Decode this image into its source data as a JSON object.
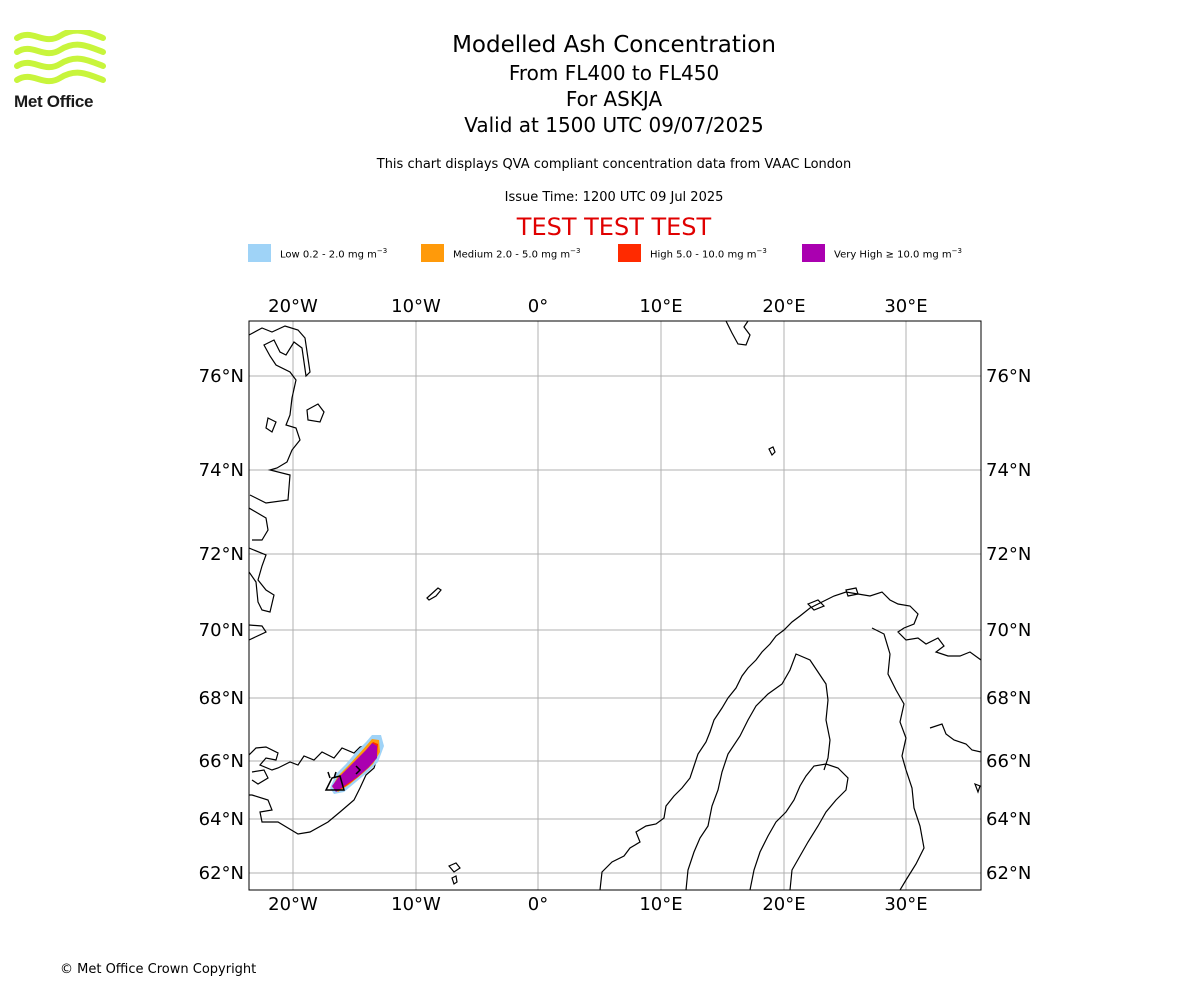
{
  "logo": {
    "text": "Met Office",
    "color": "#c8f53c"
  },
  "header": {
    "title": "Modelled Ash Concentration",
    "levels": "From FL400 to FL450",
    "volcano": "For ASKJA",
    "valid": "Valid at 1500 UTC 09/07/2025",
    "description": "This chart displays QVA compliant concentration data from VAAC London",
    "issue_time": "Issue Time: 1200 UTC 09 Jul 2025",
    "test_banner": "TEST TEST TEST",
    "test_color": "#e00000"
  },
  "legend": [
    {
      "label": "Low 0.2 - 2.0 mg m",
      "unit_exp": "−3",
      "color": "#9fd3f7"
    },
    {
      "label": "Medium 2.0 - 5.0 mg m",
      "unit_exp": "−3",
      "color": "#ff9a0a"
    },
    {
      "label": "High 5.0 - 10.0 mg m",
      "unit_exp": "−3",
      "color": "#ff2a00"
    },
    {
      "label": "Very High  ≥  10.0 mg m",
      "unit_exp": "−3",
      "color": "#aa00b0"
    }
  ],
  "map": {
    "lon_labels": [
      "20°W",
      "10°W",
      "0°",
      "10°E",
      "20°E",
      "30°E"
    ],
    "lat_labels": [
      "76°N",
      "74°N",
      "72°N",
      "70°N",
      "68°N",
      "66°N",
      "64°N",
      "62°N"
    ],
    "grid": true,
    "grid_color": "#b0b0b0"
  },
  "footer": {
    "copyright": "© Met Office Crown Copyright"
  }
}
